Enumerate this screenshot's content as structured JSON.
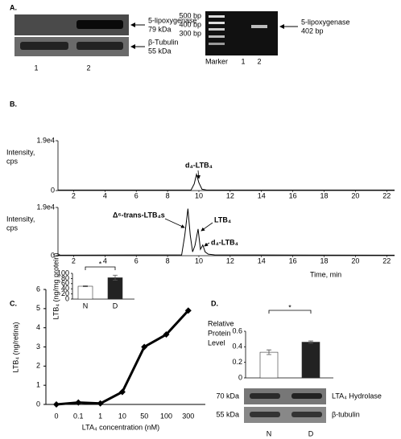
{
  "panel_labels": [
    "A.",
    "B.",
    "C.",
    "D."
  ],
  "panel_a": {
    "western_labels": [
      [
        "5-lipoxygenase",
        "79 kDa"
      ],
      [
        "β-Tubulin",
        "55 kDa"
      ]
    ],
    "lanes": [
      "1",
      "2"
    ],
    "gel_sizes": [
      "500 bp",
      "400 bp",
      "300 bp"
    ],
    "gel_lanes": [
      "Marker",
      "1",
      "2"
    ],
    "gel_label": [
      "5-lipoxygenase",
      "402 bp"
    ]
  },
  "panel_d_blot": {
    "sizes": [
      "70 kDa",
      "55 kDa"
    ],
    "labels": [
      "LTA₄ Hydrolase",
      "β-tubulin"
    ]
  },
  "chart_data": [
    {
      "type": "chromatogram",
      "y_label": [
        "Intensity,",
        "cps"
      ],
      "x": [
        1,
        9.5,
        9.7,
        9.85,
        10.0,
        10.2,
        10.5,
        22.5
      ],
      "values": [
        200,
        200,
        2500,
        6200,
        3000,
        500,
        200,
        200
      ],
      "xlim": [
        1,
        22.5
      ],
      "xticks": [
        2,
        4,
        6,
        8,
        10,
        12,
        14,
        16,
        18,
        20,
        22
      ],
      "ylim": [
        0,
        19000
      ],
      "yticks": [
        0,
        {
          "value": 19000,
          "label": "1.9e4"
        }
      ],
      "annotations": [
        "d₄-LTB₄"
      ],
      "color": "#000000"
    },
    {
      "type": "chromatogram",
      "y_label": [
        "Intensity,",
        "cps"
      ],
      "x_label": "Time, min",
      "x": [
        1,
        8.9,
        9.1,
        9.3,
        9.45,
        9.6,
        9.75,
        9.95,
        10.1,
        10.25,
        10.4,
        10.6,
        11,
        22.5
      ],
      "values": [
        200,
        300,
        8000,
        18500,
        8000,
        1500,
        4000,
        10500,
        2500,
        4200,
        1500,
        600,
        300,
        200
      ],
      "xlim": [
        1,
        22.5
      ],
      "xticks": [
        2,
        4,
        6,
        8,
        10,
        12,
        14,
        16,
        18,
        20,
        22
      ],
      "ylim": [
        0,
        19000
      ],
      "yticks": [
        0,
        {
          "value": 19000,
          "label": "1.9e4"
        }
      ],
      "annotations": [
        "Δ⁶-trans-LTB₄s",
        "LTB₄",
        "d₄-LTB₄"
      ],
      "color": "#000000"
    },
    {
      "type": "line",
      "x_label": "LTA₄ concentration (nM)",
      "y_label": "LTB₄ (ng/retina)",
      "categories": [
        "0",
        "0.1",
        "1",
        "10",
        "50",
        "100",
        "300"
      ],
      "values": [
        0,
        0.1,
        0.05,
        0.65,
        3.0,
        3.65,
        4.9
      ],
      "ylim": [
        0,
        6
      ],
      "yticks": [
        0,
        1,
        2,
        3,
        4,
        5,
        6
      ],
      "color": "#000000"
    },
    {
      "type": "bar",
      "y_label": "LTB₄ (ng/mg protein)",
      "categories": [
        "N",
        "D"
      ],
      "values": [
        50,
        83
      ],
      "errors": [
        2,
        10
      ],
      "colors": [
        "#ffffff",
        "#222222"
      ],
      "ylim": [
        0,
        100
      ],
      "yticks": [
        0,
        20,
        40,
        60,
        80,
        100
      ],
      "significance": "*"
    },
    {
      "type": "bar",
      "y_label": [
        "Relative",
        "Protein",
        "Level"
      ],
      "categories": [
        "N",
        "D"
      ],
      "values": [
        0.33,
        0.46
      ],
      "errors": [
        0.03,
        0.015
      ],
      "colors": [
        "#ffffff",
        "#222222"
      ],
      "ylim": [
        0,
        0.6
      ],
      "yticks": [
        0,
        0.2,
        0.4,
        0.6
      ],
      "significance": "*"
    }
  ]
}
